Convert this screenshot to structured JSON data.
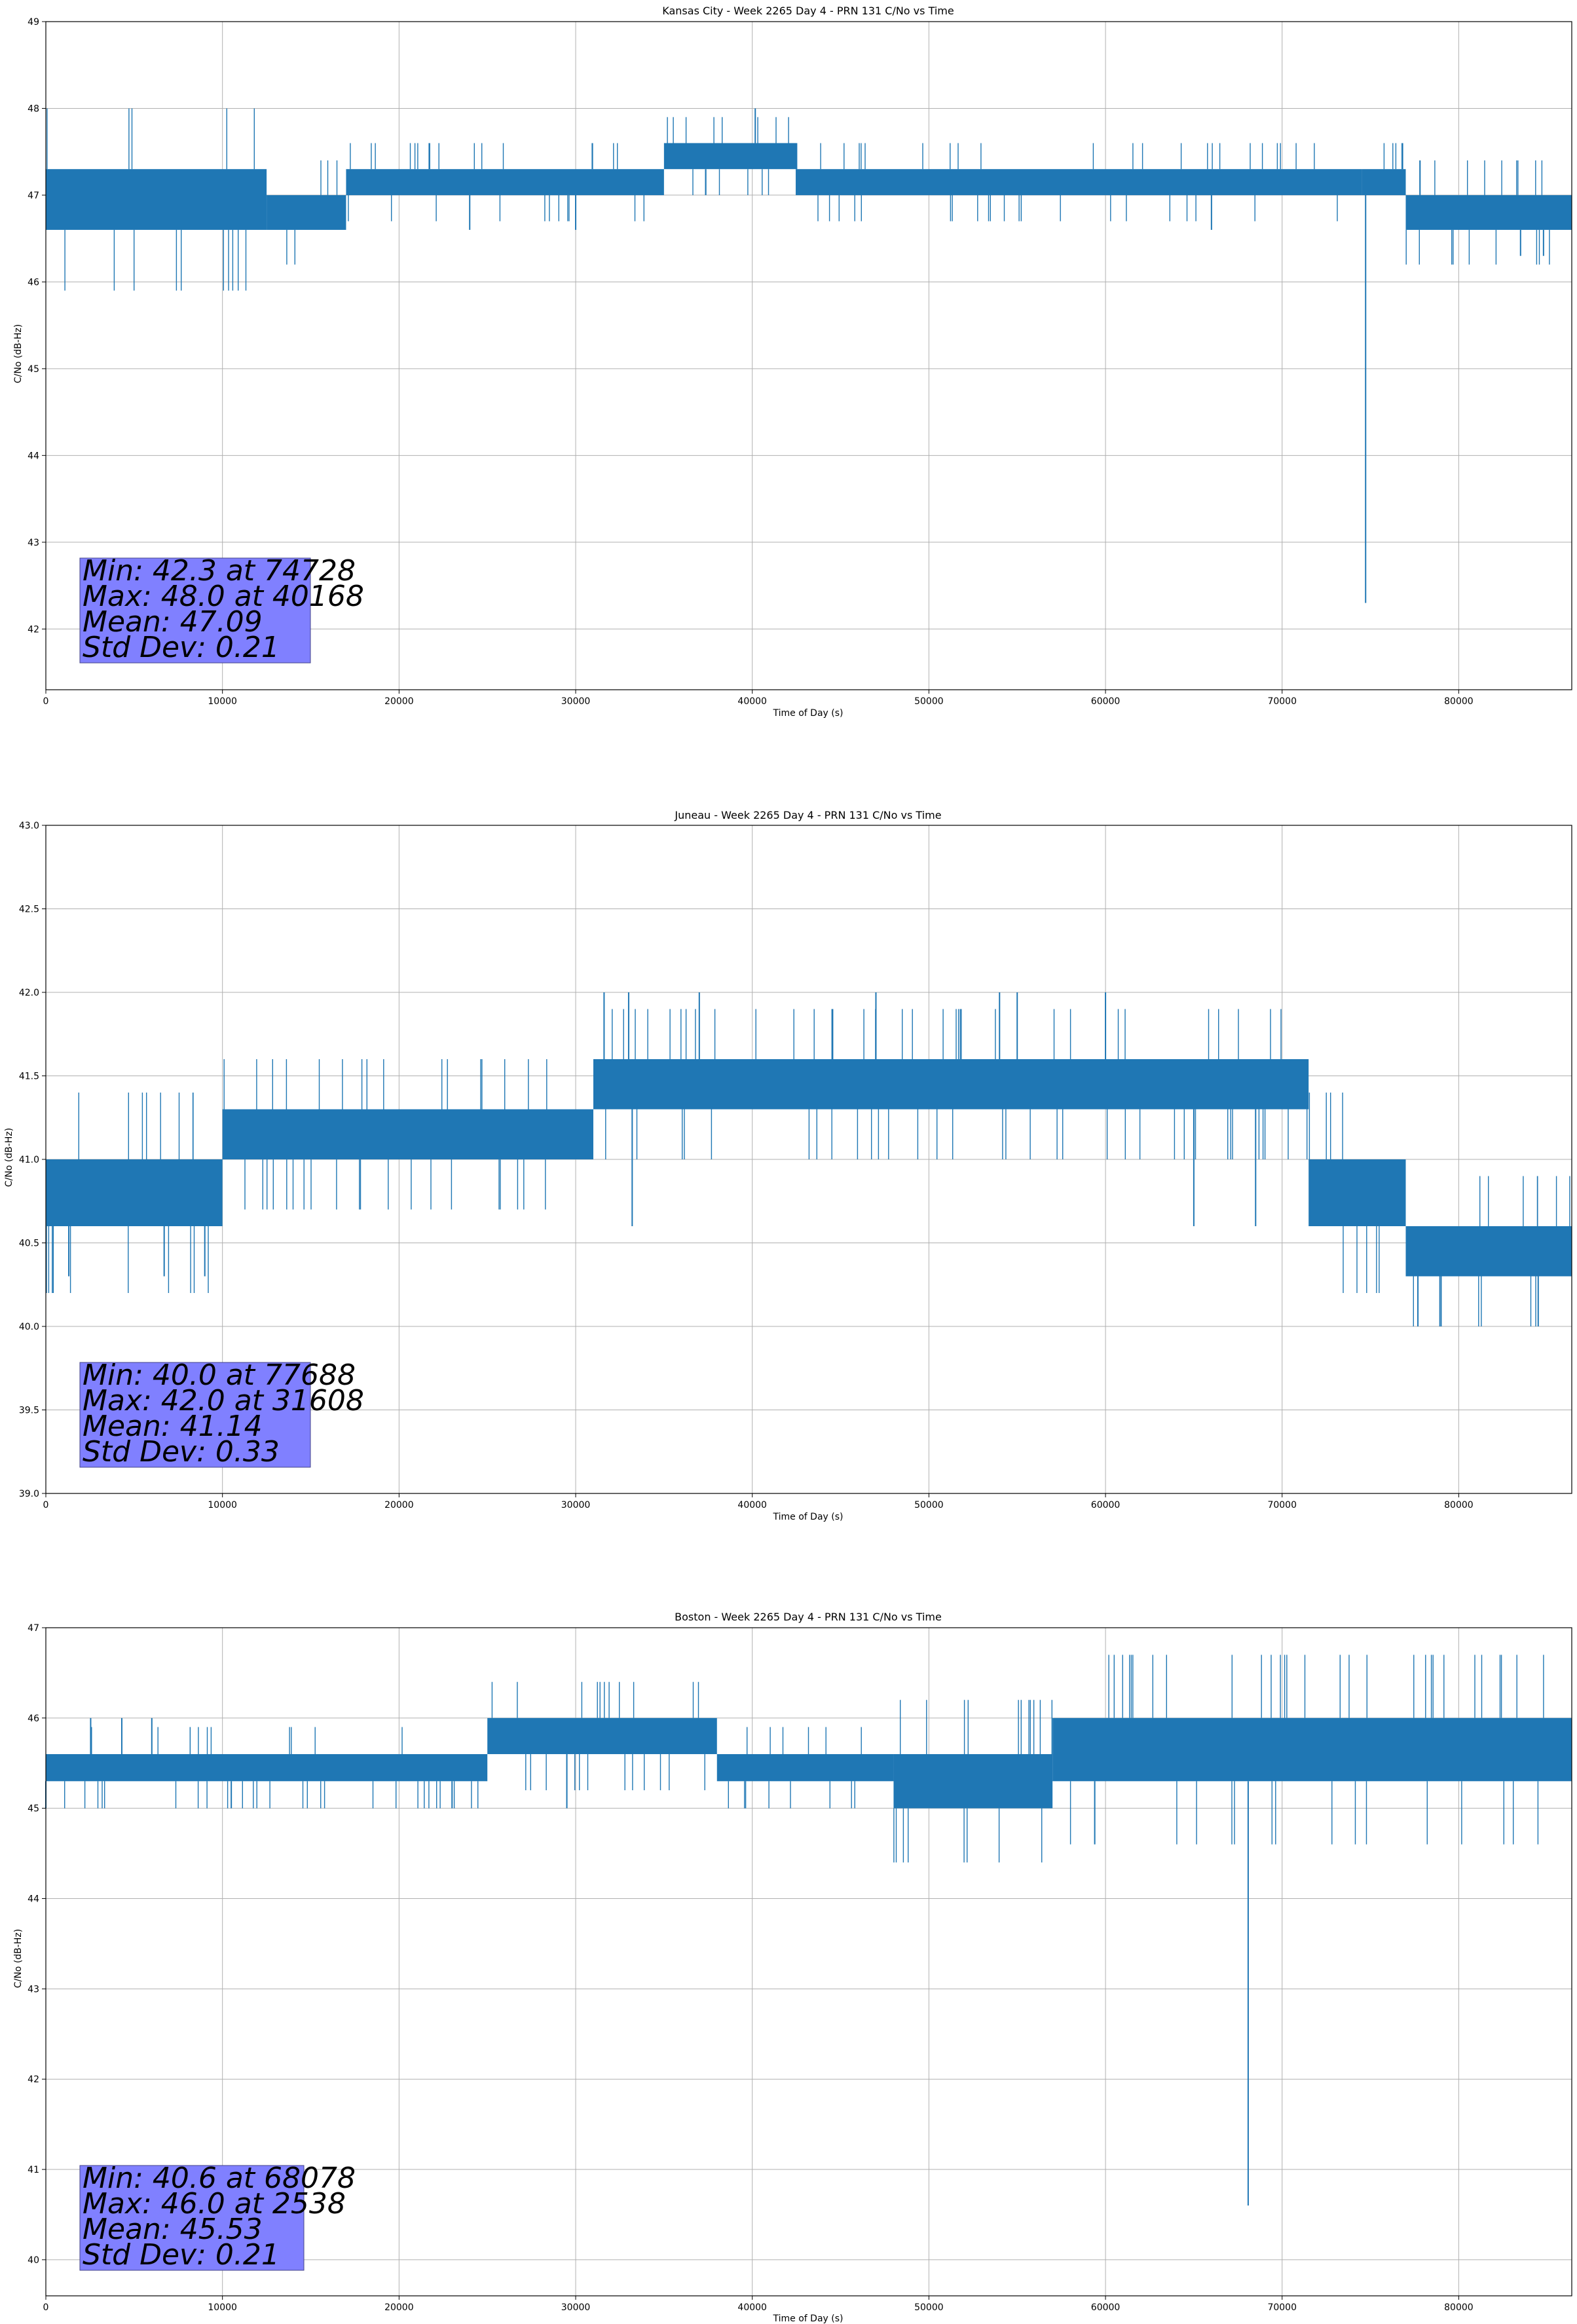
{
  "figure": {
    "colors": {
      "line": "#1f77b4",
      "grid": "#b0b0b0",
      "stats_box_fill": "#8080ff",
      "stats_box_edge": "#444488"
    }
  },
  "chart_data": [
    {
      "type": "line",
      "title": "Kansas City - Week 2265 Day 4 - PRN 131 C/No vs Time",
      "xlabel": "Time of Day (s)",
      "ylabel": "C/No (dB-Hz)",
      "xlim": [
        0,
        86400
      ],
      "ylim": [
        41.3,
        49
      ],
      "x_ticks": [
        0,
        10000,
        20000,
        30000,
        40000,
        50000,
        60000,
        70000,
        80000
      ],
      "y_ticks": [
        42,
        43,
        44,
        45,
        46,
        47,
        48,
        49
      ],
      "y_tick_labels": [
        "42",
        "43",
        "44",
        "45",
        "46",
        "47",
        "48",
        "49"
      ],
      "grid": true,
      "stats": [
        "Min: 42.3 at 74728",
        "Max: 48.0 at 40168",
        "Mean: 47.09",
        "Std Dev: 0.21"
      ],
      "series": [
        {
          "segments": [
            {
              "x": [
                0,
                12500
              ],
              "low": 46.6,
              "high": 47.3
            },
            {
              "x": [
                12500,
                17000
              ],
              "low": 46.6,
              "high": 47.0
            },
            {
              "x": [
                17000,
                35000
              ],
              "low": 47.0,
              "high": 47.3
            },
            {
              "x": [
                35000,
                42500
              ],
              "low": 47.3,
              "high": 47.6
            },
            {
              "x": [
                42500,
                74500
              ],
              "low": 47.0,
              "high": 47.3
            },
            {
              "x": [
                74500,
                77000
              ],
              "low": 47.0,
              "high": 47.3
            },
            {
              "x": [
                77000,
                86400
              ],
              "low": 46.6,
              "high": 47.0
            }
          ],
          "spikes": [
            {
              "x": 74728,
              "y": 42.3
            },
            {
              "x": 40168,
              "y": 48.0
            },
            {
              "x": 83500,
              "y": 46.3
            },
            {
              "x": 84800,
              "y": 46.3
            },
            {
              "x": 30000,
              "y": 46.6
            },
            {
              "x": 24000,
              "y": 46.6
            },
            {
              "x": 66000,
              "y": 46.6
            }
          ]
        }
      ]
    },
    {
      "type": "line",
      "title": "Juneau - Week 2265 Day 4 - PRN 131 C/No vs Time",
      "xlabel": "Time of Day (s)",
      "ylabel": "C/No (dB-Hz)",
      "xlim": [
        0,
        86400
      ],
      "ylim": [
        39.0,
        43.0
      ],
      "x_ticks": [
        0,
        10000,
        20000,
        30000,
        40000,
        50000,
        60000,
        70000,
        80000
      ],
      "y_ticks": [
        39.0,
        39.5,
        40.0,
        40.5,
        41.0,
        41.5,
        42.0,
        42.5,
        43.0
      ],
      "y_tick_labels": [
        "39.0",
        "39.5",
        "40.0",
        "40.5",
        "41.0",
        "41.5",
        "42.0",
        "42.5",
        "43.0"
      ],
      "grid": true,
      "stats": [
        "Min: 40.0 at 77688",
        "Max: 42.0 at 31608",
        "Mean: 41.14",
        "Std Dev: 0.33"
      ],
      "series": [
        {
          "segments": [
            {
              "x": [
                0,
                10000
              ],
              "low": 40.6,
              "high": 41.0
            },
            {
              "x": [
                10000,
                31000
              ],
              "low": 41.0,
              "high": 41.3
            },
            {
              "x": [
                31000,
                71500
              ],
              "low": 41.3,
              "high": 41.6
            },
            {
              "x": [
                71500,
                77000
              ],
              "low": 40.6,
              "high": 41.0
            },
            {
              "x": [
                77000,
                86400
              ],
              "low": 40.3,
              "high": 40.6
            }
          ],
          "spikes": [
            {
              "x": 31608,
              "y": 42.0
            },
            {
              "x": 33000,
              "y": 42.0
            },
            {
              "x": 37000,
              "y": 42.0
            },
            {
              "x": 47000,
              "y": 42.0
            },
            {
              "x": 54000,
              "y": 42.0
            },
            {
              "x": 55000,
              "y": 42.0
            },
            {
              "x": 60000,
              "y": 42.0
            },
            {
              "x": 77688,
              "y": 40.0
            },
            {
              "x": 79000,
              "y": 40.0
            },
            {
              "x": 84500,
              "y": 40.0
            },
            {
              "x": 6700,
              "y": 40.3
            },
            {
              "x": 9000,
              "y": 40.3
            },
            {
              "x": 1300,
              "y": 40.3
            },
            {
              "x": 33200,
              "y": 40.6
            },
            {
              "x": 65000,
              "y": 40.6
            },
            {
              "x": 68500,
              "y": 40.6
            }
          ]
        }
      ]
    },
    {
      "type": "line",
      "title": "Boston - Week 2265 Day 4 - PRN 131 C/No vs Time",
      "xlabel": "Time of Day (s)",
      "ylabel": "C/No (dB-Hz)",
      "xlim": [
        0,
        86400
      ],
      "ylim": [
        39.6,
        47
      ],
      "x_ticks": [
        0,
        10000,
        20000,
        30000,
        40000,
        50000,
        60000,
        70000,
        80000
      ],
      "y_ticks": [
        40,
        41,
        42,
        43,
        44,
        45,
        46,
        47
      ],
      "y_tick_labels": [
        "40",
        "41",
        "42",
        "43",
        "44",
        "45",
        "46",
        "47"
      ],
      "grid": true,
      "stats": [
        "Min: 40.6 at 68078",
        "Max: 46.0 at 2538",
        "Mean: 45.53",
        "Std Dev: 0.21"
      ],
      "series": [
        {
          "segments": [
            {
              "x": [
                0,
                25000
              ],
              "low": 45.3,
              "high": 45.6
            },
            {
              "x": [
                25000,
                38000
              ],
              "low": 45.6,
              "high": 46.0
            },
            {
              "x": [
                38000,
                48000
              ],
              "low": 45.3,
              "high": 45.6
            },
            {
              "x": [
                48000,
                57000
              ],
              "low": 45.0,
              "high": 45.6
            },
            {
              "x": [
                57000,
                86400
              ],
              "low": 45.3,
              "high": 46.0
            }
          ],
          "spikes": [
            {
              "x": 68078,
              "y": 40.6
            },
            {
              "x": 2538,
              "y": 46.0
            },
            {
              "x": 4300,
              "y": 46.0
            },
            {
              "x": 6000,
              "y": 46.0
            },
            {
              "x": 29500,
              "y": 45.0
            },
            {
              "x": 10500,
              "y": 45.0
            },
            {
              "x": 23000,
              "y": 45.0
            },
            {
              "x": 0,
              "y": 45.0
            }
          ]
        }
      ]
    }
  ]
}
